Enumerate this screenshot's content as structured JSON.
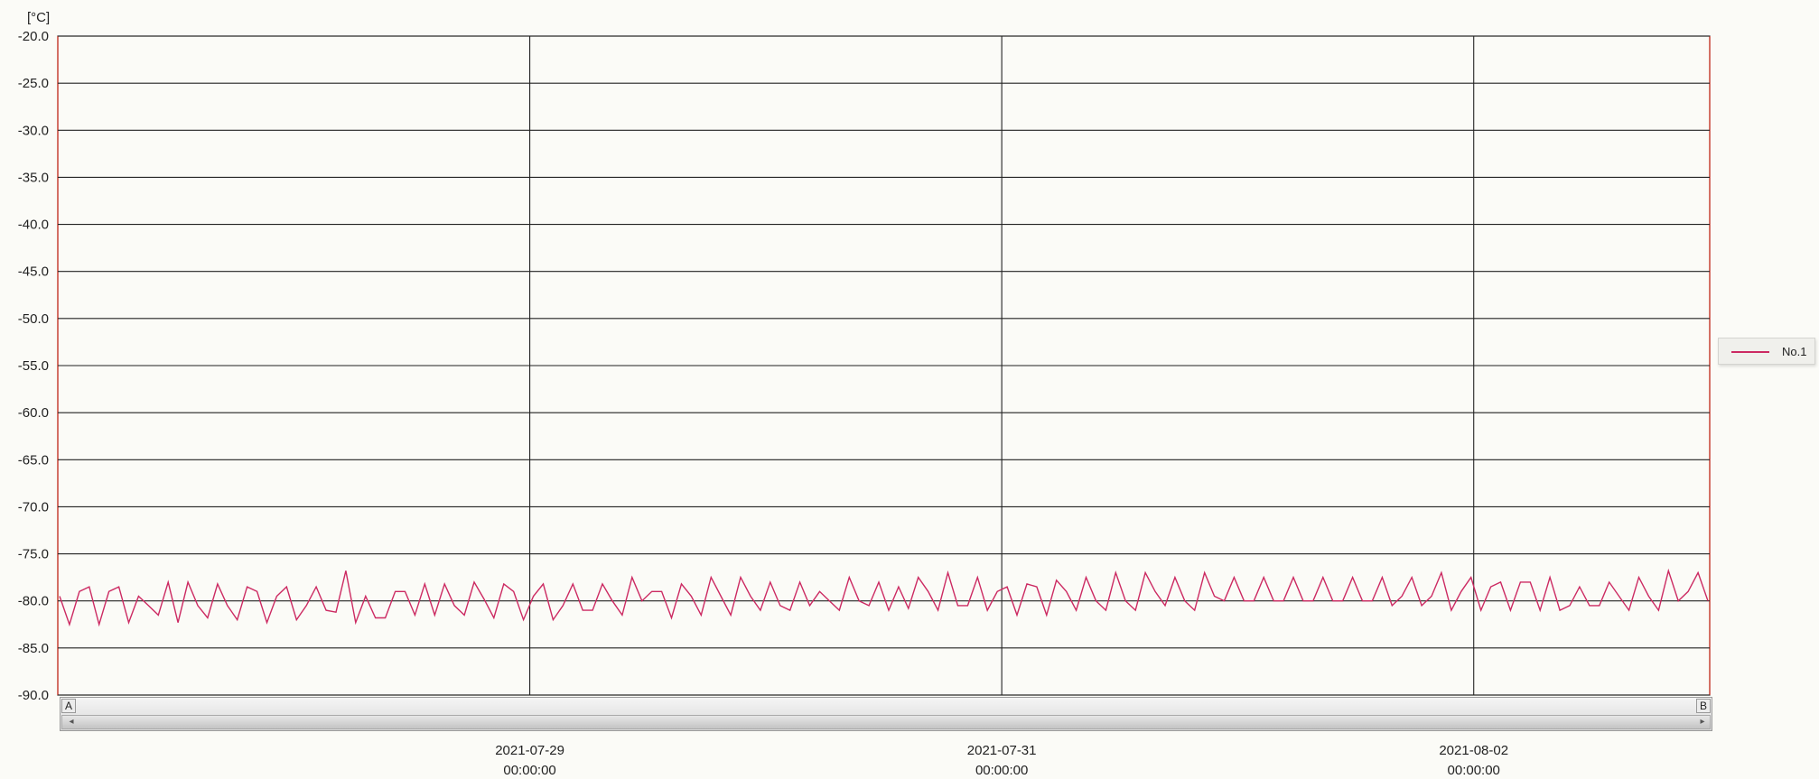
{
  "chart_data": {
    "type": "line",
    "unit_label": "[°C]",
    "ylim": [
      -90.0,
      -20.0
    ],
    "y_ticks": [
      "-20.0",
      "-25.0",
      "-30.0",
      "-35.0",
      "-40.0",
      "-45.0",
      "-50.0",
      "-55.0",
      "-60.0",
      "-65.0",
      "-70.0",
      "-75.0",
      "-80.0",
      "-85.0",
      "-90.0"
    ],
    "x_ticks": [
      {
        "date": "2021-07-29",
        "time": "00:00:00"
      },
      {
        "date": "2021-07-31",
        "time": "00:00:00"
      },
      {
        "date": "2021-08-02",
        "time": "00:00:00"
      }
    ],
    "x_range": [
      "2021-07-27T00:00:00",
      "2021-08-03T00:00:00"
    ],
    "series": [
      {
        "name": "No.1",
        "color": "#cc2a62",
        "values_summary": "oscillates between approx -77 and -82.5",
        "values": [
          -79.5,
          -82.5,
          -79.0,
          -78.5,
          -82.5,
          -79.0,
          -78.5,
          -82.3,
          -79.5,
          -80.5,
          -81.5,
          -78.0,
          -82.3,
          -78.0,
          -80.5,
          -81.8,
          -78.2,
          -80.5,
          -82.0,
          -78.5,
          -79.0,
          -82.3,
          -79.5,
          -78.5,
          -82.0,
          -80.5,
          -78.5,
          -81.0,
          -81.2,
          -76.8,
          -82.3,
          -79.5,
          -81.8,
          -81.8,
          -79.0,
          -79.0,
          -81.5,
          -78.2,
          -81.5,
          -78.2,
          -80.5,
          -81.5,
          -78.0,
          -79.8,
          -81.8,
          -78.2,
          -79.0,
          -82.0,
          -79.5,
          -78.2,
          -82.0,
          -80.5,
          -78.2,
          -81.0,
          -81.0,
          -78.2,
          -80.0,
          -81.5,
          -77.5,
          -80.0,
          -79.0,
          -79.0,
          -81.8,
          -78.2,
          -79.5,
          -81.5,
          -77.5,
          -79.5,
          -81.5,
          -77.5,
          -79.5,
          -81.0,
          -78.0,
          -80.5,
          -81.0,
          -78.0,
          -80.5,
          -79.0,
          -80.0,
          -81.0,
          -77.5,
          -80.0,
          -80.5,
          -78.0,
          -81.0,
          -78.5,
          -80.8,
          -77.5,
          -79.0,
          -81.0,
          -77.0,
          -80.5,
          -80.5,
          -77.5,
          -81.0,
          -79.0,
          -78.5,
          -81.5,
          -78.2,
          -78.5,
          -81.5,
          -77.8,
          -79.0,
          -81.0,
          -77.5,
          -80.0,
          -81.0,
          -77.0,
          -80.0,
          -81.0,
          -77.0,
          -79.0,
          -80.5,
          -77.5,
          -80.0,
          -81.0,
          -77.0,
          -79.5,
          -80.0,
          -77.5,
          -80.0,
          -80.0,
          -77.5,
          -80.0,
          -80.0,
          -77.5,
          -80.0,
          -80.0,
          -77.5,
          -80.0,
          -80.0,
          -77.5,
          -80.0,
          -80.0,
          -77.5,
          -80.5,
          -79.5,
          -77.5,
          -80.5,
          -79.5,
          -77.0,
          -81.0,
          -79.0,
          -77.5,
          -81.0,
          -78.5,
          -78.0,
          -81.0,
          -78.0,
          -78.0,
          -81.0,
          -77.5,
          -81.0,
          -80.5,
          -78.5,
          -80.5,
          -80.5,
          -78.0,
          -79.5,
          -81.0,
          -77.5,
          -79.5,
          -81.0,
          -76.8,
          -80.0,
          -79.0,
          -77.0,
          -80.0
        ]
      }
    ],
    "legend_position": "right",
    "grid": true
  },
  "scrollbar": {
    "marker_a": "A",
    "marker_b": "B",
    "arrow_left": "◂",
    "arrow_right": "▸"
  }
}
